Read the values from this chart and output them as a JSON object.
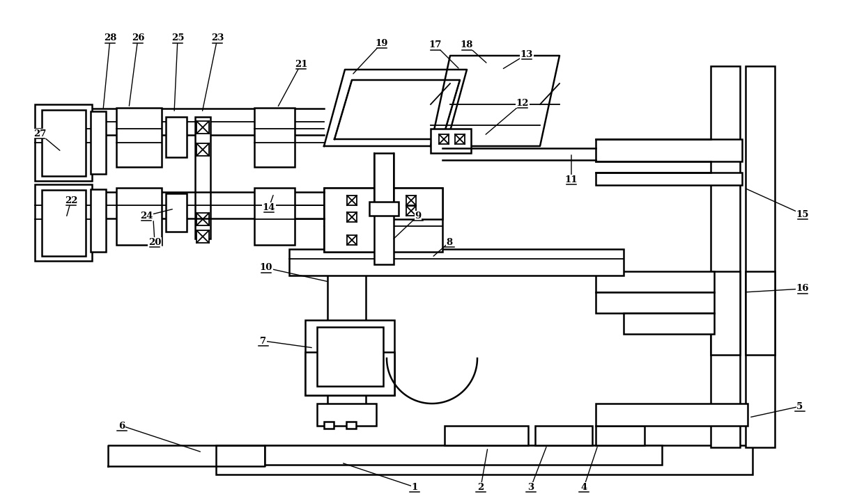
{
  "bg": "#ffffff",
  "lc": "#000000",
  "lw": 1.8,
  "lw2": 1.3,
  "lw3": 1.0,
  "fw": 12.4,
  "fh": 7.1
}
